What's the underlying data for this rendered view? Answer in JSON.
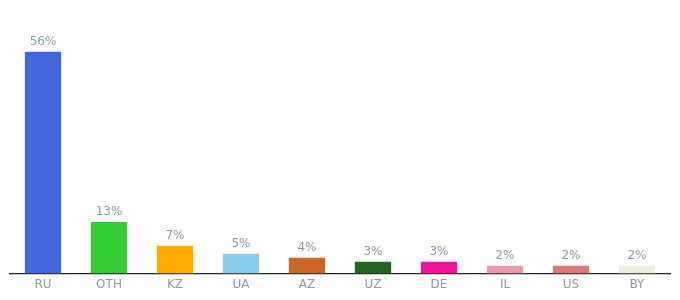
{
  "chart_data": {
    "type": "bar",
    "categories": [
      "RU",
      "OTH",
      "KZ",
      "UA",
      "AZ",
      "UZ",
      "DE",
      "IL",
      "US",
      "BY"
    ],
    "values": [
      56,
      13,
      7,
      5,
      4,
      3,
      3,
      2,
      2,
      2
    ],
    "value_labels": [
      "56%",
      "13%",
      "7%",
      "5%",
      "4%",
      "3%",
      "3%",
      "2%",
      "2%",
      "2%"
    ],
    "data_labels": true,
    "colors": [
      "#4466dd",
      "#33cc33",
      "#ffaa00",
      "#88ccee",
      "#cc6622",
      "#226622",
      "#ee1199",
      "#ee99aa",
      "#dd7777",
      "#eeeedd"
    ],
    "ylim": [
      0,
      63
    ],
    "grid": false,
    "tick_labels": "x"
  }
}
